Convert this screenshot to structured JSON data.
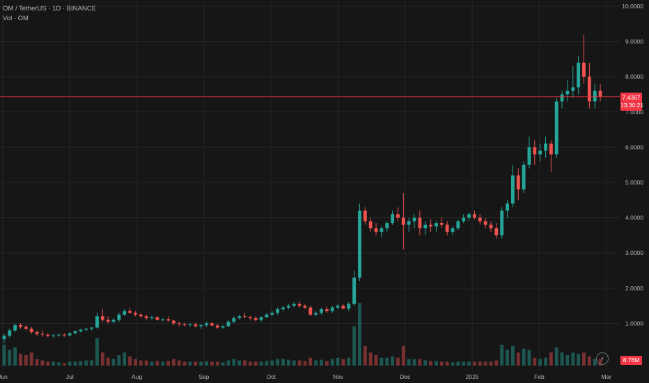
{
  "legend": {
    "symbol_line": "OM / TetherUS · 1D · BINANCE",
    "volume_line": "Vol · OM"
  },
  "price_tag": {
    "price": "7.4367",
    "countdown": "13:30:21"
  },
  "volume_tag": "8.76M",
  "colors": {
    "up": "#26a69a",
    "down": "#ef5350",
    "background": "#161616",
    "grid": "#262626",
    "last_price_line": "#f23645"
  },
  "chart_data": {
    "type": "candlestick",
    "title": "",
    "y_axis": {
      "scale": "linear",
      "range": [
        0,
        10.4
      ],
      "position": "right",
      "ticks": [
        "1.0000",
        "2.0000",
        "3.0000",
        "4.0000",
        "5.0000",
        "6.0000",
        "7.0000",
        "8.0000",
        "9.0000",
        "10.0000"
      ]
    },
    "x_axis": {
      "ticks": [
        "Jun",
        "Jul",
        "Aug",
        "Sep",
        "Oct",
        "Nov",
        "Dec",
        "2025",
        "Feb",
        "Mar"
      ]
    },
    "last_price": 7.4367,
    "grid": true,
    "candles": [
      [
        0.55,
        0.7,
        0.45,
        0.65,
        1.6
      ],
      [
        0.65,
        0.85,
        0.6,
        0.8,
        1.2
      ],
      [
        0.8,
        1.0,
        0.75,
        0.95,
        1.4
      ],
      [
        0.95,
        1.0,
        0.85,
        0.9,
        0.9
      ],
      [
        0.9,
        0.95,
        0.8,
        0.85,
        0.8
      ],
      [
        0.85,
        0.9,
        0.7,
        0.75,
        1.0
      ],
      [
        0.75,
        0.8,
        0.65,
        0.7,
        0.5
      ],
      [
        0.7,
        0.8,
        0.62,
        0.68,
        0.4
      ],
      [
        0.68,
        0.72,
        0.6,
        0.65,
        0.3
      ],
      [
        0.65,
        0.7,
        0.6,
        0.66,
        0.3
      ],
      [
        0.66,
        0.7,
        0.62,
        0.68,
        0.25
      ],
      [
        0.68,
        0.72,
        0.62,
        0.66,
        0.2
      ],
      [
        0.66,
        0.75,
        0.64,
        0.72,
        0.3
      ],
      [
        0.72,
        0.8,
        0.7,
        0.78,
        0.3
      ],
      [
        0.78,
        0.85,
        0.74,
        0.82,
        0.35
      ],
      [
        0.82,
        0.88,
        0.78,
        0.85,
        0.4
      ],
      [
        0.85,
        0.9,
        0.8,
        0.88,
        0.4
      ],
      [
        0.88,
        1.3,
        0.85,
        1.2,
        2.1
      ],
      [
        1.2,
        1.4,
        1.05,
        1.1,
        1.0
      ],
      [
        1.1,
        1.2,
        1.0,
        1.05,
        0.6
      ],
      [
        1.05,
        1.15,
        1.0,
        1.1,
        0.5
      ],
      [
        1.1,
        1.3,
        1.05,
        1.25,
        0.8
      ],
      [
        1.25,
        1.4,
        1.2,
        1.35,
        1.0
      ],
      [
        1.35,
        1.45,
        1.28,
        1.3,
        0.7
      ],
      [
        1.3,
        1.35,
        1.2,
        1.25,
        0.5
      ],
      [
        1.25,
        1.3,
        1.15,
        1.2,
        0.4
      ],
      [
        1.2,
        1.25,
        1.1,
        1.15,
        0.4
      ],
      [
        1.15,
        1.22,
        1.1,
        1.18,
        0.3
      ],
      [
        1.18,
        1.2,
        1.08,
        1.1,
        0.35
      ],
      [
        1.1,
        1.15,
        1.05,
        1.12,
        0.3
      ],
      [
        1.12,
        1.2,
        1.05,
        1.08,
        0.35
      ],
      [
        1.08,
        1.1,
        0.95,
        1.0,
        0.5
      ],
      [
        1.0,
        1.05,
        0.92,
        0.98,
        0.4
      ],
      [
        0.98,
        1.02,
        0.9,
        0.95,
        0.3
      ],
      [
        0.95,
        1.0,
        0.9,
        0.97,
        0.3
      ],
      [
        0.97,
        1.02,
        0.88,
        0.92,
        0.3
      ],
      [
        0.92,
        0.98,
        0.85,
        0.95,
        0.3
      ],
      [
        0.95,
        1.05,
        0.9,
        1.0,
        0.35
      ],
      [
        1.0,
        1.05,
        0.92,
        0.94,
        0.3
      ],
      [
        0.94,
        0.98,
        0.85,
        0.88,
        0.3
      ],
      [
        0.88,
        0.95,
        0.85,
        0.92,
        0.25
      ],
      [
        0.92,
        1.1,
        0.9,
        1.05,
        0.4
      ],
      [
        1.05,
        1.2,
        1.0,
        1.15,
        0.5
      ],
      [
        1.15,
        1.25,
        1.1,
        1.2,
        0.4
      ],
      [
        1.2,
        1.3,
        1.15,
        1.18,
        0.4
      ],
      [
        1.18,
        1.22,
        1.1,
        1.15,
        0.3
      ],
      [
        1.15,
        1.2,
        1.05,
        1.1,
        0.3
      ],
      [
        1.1,
        1.2,
        1.05,
        1.18,
        0.3
      ],
      [
        1.18,
        1.3,
        1.15,
        1.25,
        0.35
      ],
      [
        1.25,
        1.35,
        1.2,
        1.3,
        0.4
      ],
      [
        1.3,
        1.45,
        1.25,
        1.4,
        0.5
      ],
      [
        1.4,
        1.5,
        1.35,
        1.45,
        0.5
      ],
      [
        1.45,
        1.55,
        1.4,
        1.5,
        0.45
      ],
      [
        1.5,
        1.6,
        1.45,
        1.55,
        0.4
      ],
      [
        1.55,
        1.62,
        1.45,
        1.5,
        0.4
      ],
      [
        1.5,
        1.55,
        1.4,
        1.45,
        0.35
      ],
      [
        1.45,
        1.5,
        1.2,
        1.25,
        0.6
      ],
      [
        1.25,
        1.35,
        1.2,
        1.3,
        0.4
      ],
      [
        1.3,
        1.45,
        1.25,
        1.4,
        0.45
      ],
      [
        1.4,
        1.48,
        1.3,
        1.35,
        0.35
      ],
      [
        1.35,
        1.5,
        1.3,
        1.45,
        0.5
      ],
      [
        1.45,
        1.55,
        1.4,
        1.5,
        0.6
      ],
      [
        1.5,
        1.55,
        1.4,
        1.42,
        0.5
      ],
      [
        1.42,
        1.6,
        1.35,
        1.55,
        0.6
      ],
      [
        1.55,
        2.5,
        1.5,
        2.3,
        3.0
      ],
      [
        2.3,
        4.4,
        2.2,
        4.2,
        4.8
      ],
      [
        4.2,
        4.3,
        3.8,
        3.9,
        1.5
      ],
      [
        3.9,
        4.0,
        3.6,
        3.7,
        1.0
      ],
      [
        3.7,
        3.85,
        3.5,
        3.6,
        0.8
      ],
      [
        3.6,
        3.75,
        3.45,
        3.7,
        0.6
      ],
      [
        3.7,
        3.9,
        3.6,
        3.85,
        0.6
      ],
      [
        3.85,
        4.2,
        3.8,
        4.1,
        0.7
      ],
      [
        4.1,
        4.3,
        3.9,
        4.0,
        0.6
      ],
      [
        4.0,
        4.7,
        3.1,
        3.8,
        1.5
      ],
      [
        3.8,
        4.0,
        3.6,
        3.9,
        0.5
      ],
      [
        3.9,
        4.1,
        3.7,
        4.0,
        0.5
      ],
      [
        4.0,
        4.2,
        3.5,
        3.7,
        0.5
      ],
      [
        3.7,
        3.9,
        3.5,
        3.8,
        0.4
      ],
      [
        3.8,
        3.95,
        3.6,
        3.75,
        0.35
      ],
      [
        3.75,
        3.9,
        3.6,
        3.85,
        0.35
      ],
      [
        3.85,
        4.0,
        3.7,
        3.8,
        0.3
      ],
      [
        3.8,
        3.9,
        3.5,
        3.6,
        0.3
      ],
      [
        3.6,
        3.75,
        3.5,
        3.7,
        0.25
      ],
      [
        3.7,
        3.95,
        3.65,
        3.9,
        0.3
      ],
      [
        3.9,
        4.1,
        3.85,
        4.0,
        0.3
      ],
      [
        4.0,
        4.15,
        3.9,
        4.1,
        0.3
      ],
      [
        4.1,
        4.2,
        3.95,
        4.0,
        0.3
      ],
      [
        4.0,
        4.1,
        3.8,
        3.9,
        0.3
      ],
      [
        3.9,
        4.0,
        3.7,
        3.8,
        0.3
      ],
      [
        3.8,
        3.9,
        3.6,
        3.7,
        0.3
      ],
      [
        3.7,
        3.85,
        3.4,
        3.5,
        0.4
      ],
      [
        3.5,
        4.3,
        3.4,
        4.2,
        1.6
      ],
      [
        4.2,
        4.5,
        4.0,
        4.4,
        1.2
      ],
      [
        4.4,
        5.5,
        4.3,
        5.2,
        1.5
      ],
      [
        5.2,
        5.4,
        4.5,
        4.8,
        1.0
      ],
      [
        4.8,
        5.6,
        4.7,
        5.5,
        1.3
      ],
      [
        5.5,
        6.3,
        5.4,
        6.0,
        1.2
      ],
      [
        6.0,
        6.2,
        5.5,
        5.8,
        0.6
      ],
      [
        5.8,
        6.1,
        5.6,
        5.9,
        0.5
      ],
      [
        5.9,
        6.3,
        5.7,
        6.1,
        0.6
      ],
      [
        6.1,
        6.2,
        5.3,
        5.8,
        1.0
      ],
      [
        5.8,
        7.4,
        5.7,
        7.3,
        1.4
      ],
      [
        7.3,
        7.6,
        7.1,
        7.5,
        1.0
      ],
      [
        7.5,
        7.9,
        7.3,
        7.6,
        0.8
      ],
      [
        7.6,
        8.3,
        7.4,
        7.7,
        1.0
      ],
      [
        7.7,
        8.6,
        7.5,
        8.4,
        0.9
      ],
      [
        8.4,
        9.2,
        7.8,
        8.0,
        1.0
      ],
      [
        8.0,
        8.4,
        7.1,
        7.3,
        0.7
      ],
      [
        7.3,
        7.8,
        7.1,
        7.6,
        0.5
      ],
      [
        7.6,
        7.8,
        7.3,
        7.4367,
        0.5
      ]
    ]
  }
}
